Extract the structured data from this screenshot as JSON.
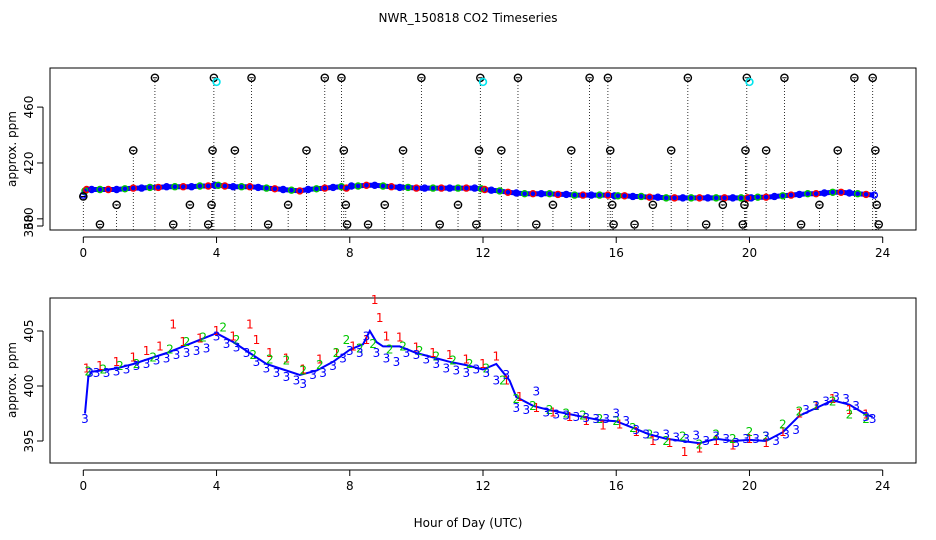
{
  "figure": {
    "title": "NWR_150818  CO2 Timeseries",
    "shared_xlabel": "Hour of Day (UTC)"
  },
  "colors": {
    "s1": "#ff0000",
    "s2": "#00c800",
    "s3": "#0000ff",
    "flag": "#000000",
    "cyan": "#00e5ee",
    "drop": "#000000"
  },
  "chart_data": [
    {
      "type": "scatter",
      "name": "top",
      "title": "",
      "xlabel": "",
      "ylabel": "approx. ppm",
      "xlim": [
        -1,
        25
      ],
      "ylim": [
        372,
        488
      ],
      "xticks": [
        0,
        4,
        8,
        12,
        16,
        20,
        24
      ],
      "yticks": [
        380,
        420,
        460
      ],
      "ytick_labels": [
        "380",
        "420",
        "460"
      ],
      "extra_ytick": 360,
      "extra_ytick_label": "360",
      "line": {
        "x": [
          0,
          0.05,
          0.1,
          0.25,
          0.5,
          0.75,
          1,
          1.25,
          1.5,
          1.75,
          2,
          2.25,
          2.5,
          2.75,
          3,
          3.25,
          3.5,
          3.75,
          3.95,
          4.05,
          4.25,
          4.5,
          4.75,
          5,
          5.25,
          5.5,
          5.75,
          6,
          6.25,
          6.5,
          6.75,
          7,
          7.25,
          7.5,
          7.75,
          7.9,
          8.05,
          8.25,
          8.5,
          8.75,
          9,
          9.25,
          9.5,
          9.75,
          10,
          10.25,
          10.5,
          10.75,
          11,
          11.25,
          11.5,
          11.75,
          11.95,
          12.05,
          12.25,
          12.5,
          12.75,
          13,
          13.25,
          13.5,
          13.75,
          14,
          14.25,
          14.5,
          14.75,
          15,
          15.25,
          15.5,
          15.75,
          15.95,
          16.05,
          16.25,
          16.5,
          16.75,
          17,
          17.25,
          17.5,
          17.75,
          18,
          18.25,
          18.5,
          18.75,
          19,
          19.25,
          19.5,
          19.75,
          19.95,
          20.05,
          20.25,
          20.5,
          20.75,
          21,
          21.25,
          21.5,
          21.75,
          22,
          22.25,
          22.5,
          22.75,
          23,
          23.25,
          23.5,
          23.75
        ],
        "y": [
          397,
          400,
          401,
          401,
          401,
          401,
          401,
          401.5,
          402,
          402,
          402.5,
          402.5,
          403,
          403,
          403,
          403,
          403.5,
          403.5,
          404,
          404,
          403.5,
          403,
          403,
          403,
          402.5,
          402,
          401.5,
          401,
          400.5,
          400,
          401,
          401.5,
          402,
          402.5,
          403,
          402,
          403.5,
          403.5,
          404,
          404,
          403.5,
          403,
          402.5,
          402.5,
          402,
          402,
          402,
          402,
          402,
          402,
          402,
          402,
          401.5,
          401,
          400.5,
          400,
          399,
          398.5,
          398,
          398,
          398,
          398,
          397.5,
          397.5,
          397,
          397,
          397,
          397,
          397,
          396.5,
          396.5,
          396.5,
          396,
          396,
          395.5,
          395.5,
          395,
          395,
          395,
          395,
          395,
          395,
          395,
          395,
          395,
          395,
          395,
          395,
          395.5,
          395.5,
          396,
          396.5,
          397,
          397.5,
          398,
          398,
          398.5,
          399,
          399,
          398.5,
          398,
          397.5,
          397
        ]
      },
      "flag_points": {
        "x": [
          0,
          0.5,
          1,
          1.5,
          2.15,
          2.7,
          3.2,
          3.75,
          3.85,
          3.88,
          3.92,
          4.55,
          5.05,
          5.55,
          6.15,
          6.7,
          7.25,
          7.75,
          7.82,
          7.88,
          7.92,
          8.55,
          9.05,
          9.6,
          10.15,
          10.7,
          11.25,
          11.8,
          11.88,
          11.92,
          12.55,
          13.05,
          13.6,
          14.1,
          14.65,
          15.2,
          15.75,
          15.82,
          15.88,
          15.92,
          16.55,
          17.1,
          17.65,
          18.15,
          18.7,
          19.2,
          19.8,
          19.85,
          19.88,
          19.92,
          20.5,
          21.05,
          21.55,
          22.1,
          22.65,
          23.15,
          23.7,
          23.78,
          23.82,
          23.88
        ],
        "y": [
          396,
          376,
          390,
          429,
          481,
          376,
          390,
          376,
          390,
          429,
          481,
          429,
          481,
          376,
          390,
          429,
          481,
          481,
          429,
          390,
          376,
          376,
          390,
          429,
          481,
          376,
          390,
          376,
          429,
          481,
          429,
          481,
          376,
          390,
          429,
          481,
          481,
          429,
          390,
          376,
          376,
          390,
          429,
          481,
          376,
          390,
          376,
          390,
          429,
          481,
          429,
          481,
          376,
          390,
          429,
          481,
          481,
          429,
          390,
          376
        ]
      },
      "cyan_points": {
        "x": [
          4.0,
          12.0,
          20.0
        ],
        "y": [
          478,
          478,
          478
        ]
      }
    },
    {
      "type": "scatter",
      "name": "bottom",
      "title": "",
      "xlabel": "",
      "ylabel": "approx. ppm",
      "xlim": [
        -1,
        25
      ],
      "ylim": [
        393,
        408
      ],
      "xticks": [
        0,
        4,
        8,
        12,
        16,
        20,
        24
      ],
      "yticks": [
        395,
        400,
        405
      ],
      "ytick_labels": [
        "395",
        "400",
        "405"
      ],
      "series": [
        {
          "name": "1",
          "color": "#ff0000",
          "x": [
            0.1,
            0.5,
            1.0,
            1.5,
            1.9,
            2.3,
            2.7,
            3.0,
            3.5,
            4.0,
            4.5,
            5.0,
            5.2,
            5.6,
            6.1,
            6.6,
            7.1,
            7.6,
            8.1,
            8.5,
            8.75,
            8.9,
            9.1,
            9.5,
            10.0,
            10.5,
            11.0,
            11.5,
            12.0,
            12.4,
            12.7,
            13.1,
            13.6,
            14.1,
            14.6,
            15.1,
            15.6,
            16.1,
            16.6,
            17.1,
            17.6,
            18.05,
            18.5,
            19.0,
            19.5,
            20.0,
            20.5,
            21.0,
            21.5,
            22.0,
            22.5,
            23.0,
            23.5
          ],
          "y": [
            401.6,
            401.8,
            402.2,
            402.6,
            403.2,
            403.6,
            405.6,
            404.0,
            404.3,
            405.0,
            404.5,
            405.6,
            404.2,
            403.0,
            402.5,
            401.5,
            402.4,
            403.0,
            403.6,
            404.2,
            407.8,
            406.2,
            404.5,
            404.4,
            403.5,
            403.0,
            402.8,
            402.4,
            402.0,
            402.7,
            400.5,
            399.0,
            398.0,
            397.6,
            397.2,
            396.8,
            396.4,
            396.5,
            395.8,
            395.0,
            394.8,
            394.0,
            394.3,
            395.0,
            394.6,
            395.2,
            394.8,
            395.8,
            397.5,
            398.2,
            398.8,
            397.8,
            397.4
          ]
        },
        {
          "name": "2",
          "color": "#00c800",
          "x": [
            0.15,
            0.6,
            1.1,
            1.6,
            2.1,
            2.6,
            3.1,
            3.6,
            4.2,
            4.6,
            5.1,
            5.6,
            6.1,
            6.6,
            7.1,
            7.6,
            7.9,
            8.3,
            8.7,
            9.2,
            9.6,
            10.1,
            10.6,
            11.1,
            11.6,
            12.1,
            12.6,
            13.0,
            13.5,
            14.0,
            14.5,
            15.0,
            15.5,
            16.0,
            16.5,
            17.0,
            17.5,
            18.0,
            18.5,
            19.0,
            19.5,
            20.0,
            20.5,
            21.0,
            21.5,
            22.0,
            22.5,
            23.0,
            23.5
          ],
          "y": [
            401.3,
            401.5,
            401.8,
            402.0,
            402.6,
            403.3,
            404.0,
            404.4,
            405.3,
            404.2,
            402.8,
            402.4,
            402.3,
            401.4,
            401.9,
            403.0,
            404.2,
            403.4,
            403.8,
            403.3,
            403.6,
            403.2,
            402.7,
            402.3,
            402.0,
            401.6,
            400.5,
            398.8,
            398.2,
            397.8,
            397.5,
            397.3,
            397.0,
            396.8,
            396.2,
            395.6,
            395.0,
            395.4,
            394.7,
            395.6,
            395.2,
            395.8,
            395.4,
            396.5,
            397.7,
            398.2,
            398.6,
            397.4,
            397.0
          ]
        },
        {
          "name": "3",
          "color": "#0000ff",
          "x": [
            0.05,
            0.2,
            0.4,
            0.7,
            1.0,
            1.3,
            1.6,
            1.9,
            2.2,
            2.5,
            2.8,
            3.1,
            3.4,
            3.7,
            4.0,
            4.3,
            4.6,
            4.9,
            5.2,
            5.5,
            5.8,
            6.1,
            6.4,
            6.6,
            6.9,
            7.2,
            7.5,
            7.8,
            8.0,
            8.3,
            8.5,
            8.8,
            9.1,
            9.4,
            9.7,
            10.0,
            10.3,
            10.6,
            10.9,
            11.2,
            11.5,
            11.8,
            12.1,
            12.4,
            12.7,
            13.0,
            13.3,
            13.6,
            13.9,
            14.2,
            14.5,
            14.8,
            15.1,
            15.4,
            15.7,
            16.0,
            16.3,
            16.6,
            16.9,
            17.2,
            17.5,
            17.8,
            18.1,
            18.4,
            18.7,
            19.0,
            19.3,
            19.6,
            19.9,
            20.2,
            20.5,
            20.8,
            21.1,
            21.4,
            21.7,
            22.0,
            22.3,
            22.6,
            22.9,
            23.2,
            23.5,
            23.7
          ],
          "y": [
            397.0,
            401.2,
            401.2,
            401.2,
            401.3,
            401.5,
            401.8,
            402.0,
            402.3,
            402.5,
            402.8,
            403.0,
            403.2,
            403.4,
            404.5,
            403.8,
            403.5,
            403.0,
            402.2,
            401.6,
            401.2,
            400.8,
            400.5,
            400.2,
            401.0,
            401.2,
            401.8,
            402.5,
            403.2,
            403.0,
            404.5,
            403.0,
            402.5,
            402.2,
            403.0,
            402.8,
            402.4,
            402.0,
            401.6,
            401.4,
            401.2,
            401.5,
            401.2,
            400.5,
            401.0,
            398.0,
            397.8,
            399.5,
            397.6,
            397.4,
            397.3,
            397.2,
            397.1,
            397.0,
            397.0,
            397.5,
            396.8,
            396.0,
            395.6,
            395.4,
            395.6,
            395.3,
            395.2,
            395.5,
            395.0,
            395.4,
            395.2,
            394.8,
            395.2,
            395.2,
            395.4,
            395.0,
            395.6,
            396.0,
            397.8,
            398.2,
            398.6,
            399.0,
            398.8,
            398.2,
            397.2,
            397.0
          ]
        }
      ],
      "line": {
        "x": [
          0.05,
          0.15,
          0.25,
          0.5,
          1.0,
          1.5,
          2.0,
          2.5,
          3.0,
          3.5,
          4.0,
          4.5,
          5.0,
          5.5,
          6.0,
          6.5,
          7.0,
          7.5,
          8.0,
          8.4,
          8.6,
          8.8,
          9.0,
          9.5,
          10.0,
          10.5,
          11.0,
          11.5,
          12.0,
          12.4,
          12.8,
          13.0,
          13.5,
          14.0,
          14.5,
          15.0,
          15.5,
          16.0,
          16.5,
          17.0,
          17.5,
          18.0,
          18.5,
          19.0,
          19.5,
          20.0,
          20.5,
          21.0,
          21.5,
          22.0,
          22.5,
          23.0,
          23.5,
          23.7
        ],
        "y": [
          397.5,
          400.8,
          401.3,
          401.4,
          401.6,
          402.0,
          402.5,
          403.0,
          403.6,
          404.2,
          404.8,
          404.0,
          403.0,
          402.0,
          401.5,
          401.0,
          401.4,
          402.2,
          403.3,
          403.8,
          405.0,
          404.0,
          403.6,
          403.6,
          403.0,
          402.6,
          402.2,
          401.9,
          401.5,
          402.0,
          400.5,
          399.0,
          398.2,
          397.8,
          397.5,
          397.2,
          396.9,
          396.8,
          396.2,
          395.6,
          395.2,
          395.0,
          394.8,
          395.2,
          395.0,
          395.1,
          395.0,
          395.8,
          397.3,
          398.0,
          398.7,
          398.3,
          397.4,
          397.2
        ]
      }
    }
  ]
}
